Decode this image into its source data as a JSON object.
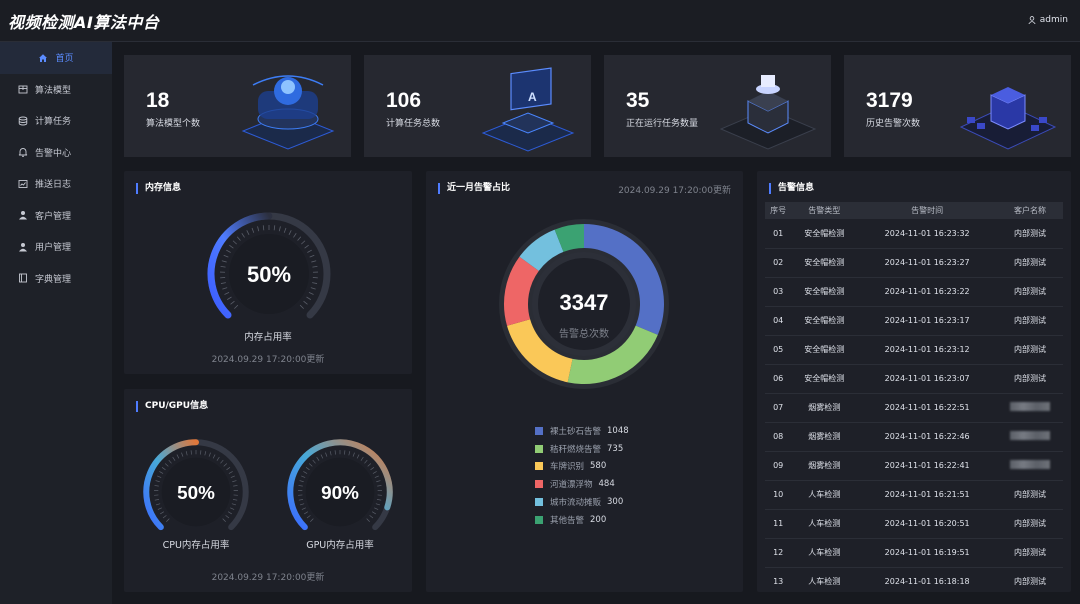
{
  "app": {
    "title": "视频检测AI算法中台",
    "user": "admin"
  },
  "sidebar": {
    "items": [
      {
        "label": "首页",
        "icon": "home-icon",
        "active": true
      },
      {
        "label": "算法模型",
        "icon": "package-icon"
      },
      {
        "label": "计算任务",
        "icon": "database-icon"
      },
      {
        "label": "告警中心",
        "icon": "bell-icon"
      },
      {
        "label": "推送日志",
        "icon": "log-icon"
      },
      {
        "label": "客户管理",
        "icon": "user-icon"
      },
      {
        "label": "用户管理",
        "icon": "user-icon"
      },
      {
        "label": "字典管理",
        "icon": "book-icon"
      }
    ]
  },
  "stats": [
    {
      "value": "18",
      "label": "算法模型个数"
    },
    {
      "value": "106",
      "label": "计算任务总数"
    },
    {
      "value": "35",
      "label": "正在运行任务数量"
    },
    {
      "value": "3179",
      "label": "历史告警次数"
    }
  ],
  "memory": {
    "title": "内存信息",
    "value": "50%",
    "percent": 0.5,
    "label": "内存占用率",
    "updated": "2024.09.29 17:20:00更新"
  },
  "cpugpu": {
    "title": "CPU/GPU信息",
    "cpu": {
      "value": "50%",
      "percent": 0.5,
      "label": "CPU内存占用率"
    },
    "gpu": {
      "value": "90%",
      "percent": 0.9,
      "label": "GPU内存占用率"
    },
    "updated": "2024.09.29 17:20:00更新"
  },
  "alarm_ratio": {
    "title": "近一月告警占比",
    "time": "2024.09.29 17:20:00更新",
    "total": "3347",
    "total_label": "告警总次数"
  },
  "chart_data": {
    "type": "pie",
    "title": "近一月告警占比",
    "categories": [
      "裸土砂石告警",
      "秸秆燃烧告警",
      "车牌识别",
      "河道漂浮物",
      "城市流动摊贩",
      "其他告警"
    ],
    "values": [
      1048,
      735,
      580,
      484,
      300,
      200
    ],
    "colors": [
      "#5470c6",
      "#91cc75",
      "#fac858",
      "#ee6666",
      "#73c0de",
      "#3ba272"
    ]
  },
  "alarms": {
    "title": "告警信息",
    "columns": [
      "序号",
      "告警类型",
      "告警时间",
      "客户名称"
    ],
    "rows": [
      [
        "01",
        "安全帽检测",
        "2024-11-01 16:23:32",
        "内部测试"
      ],
      [
        "02",
        "安全帽检测",
        "2024-11-01 16:23:27",
        "内部测试"
      ],
      [
        "03",
        "安全帽检测",
        "2024-11-01 16:23:22",
        "内部测试"
      ],
      [
        "04",
        "安全帽检测",
        "2024-11-01 16:23:17",
        "内部测试"
      ],
      [
        "05",
        "安全帽检测",
        "2024-11-01 16:23:12",
        "内部测试"
      ],
      [
        "06",
        "安全帽检测",
        "2024-11-01 16:23:07",
        "内部测试"
      ],
      [
        "07",
        "烟雾检测",
        "2024-11-01 16:22:51",
        ""
      ],
      [
        "08",
        "烟雾检测",
        "2024-11-01 16:22:46",
        ""
      ],
      [
        "09",
        "烟雾检测",
        "2024-11-01 16:22:41",
        ""
      ],
      [
        "10",
        "人车检测",
        "2024-11-01 16:21:51",
        "内部测试"
      ],
      [
        "11",
        "人车检测",
        "2024-11-01 16:20:51",
        "内部测试"
      ],
      [
        "12",
        "人车检测",
        "2024-11-01 16:19:51",
        "内部测试"
      ],
      [
        "13",
        "人车检测",
        "2024-11-01 16:18:18",
        "内部测试"
      ]
    ]
  }
}
